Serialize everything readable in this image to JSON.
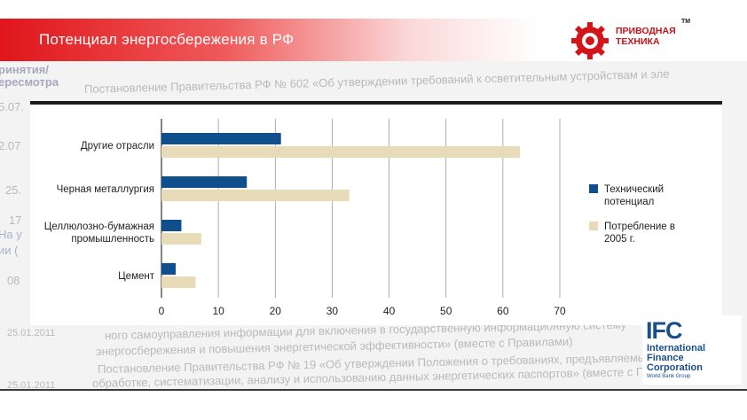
{
  "header": {
    "title": "Потенциал энергосбережения в РФ"
  },
  "logo": {
    "line1": "ПРИВОДНАЯ",
    "line2": "ТЕХНИКА",
    "tm": "TM"
  },
  "ifc_logo": {
    "mark": "IFC",
    "line1": "International",
    "line2": "Finance",
    "line3": "Corporation",
    "sub": "World Bank Group"
  },
  "background_text": {
    "left_fragments": [
      "ринятия/",
      "ересмотра",
      "5.07.",
      "2.07",
      "25.",
      "17",
      "На у",
      "ии (",
      "08",
      "25.01.2011",
      "25.01.2011"
    ],
    "lines": [
      "Постановление Правительства РФ № 602 «Об утверждении требований к осветительным устройствам и эле",
      "ного самоуправления информации для включения в государственную информационную систему",
      "энергосбережения и повышения энергетической эффективности» (вместе с Правилами)",
      "Постановление Правительства РФ № 19 «Об утверждении Положения о требованиях, предъявляемых к",
      "обработке, систематизации, анализу и использованию данных энергетических паспортов» (вместе с По"
    ]
  },
  "chart_data": {
    "type": "bar",
    "orientation": "horizontal",
    "categories": [
      "Другие отрасли",
      "Черная металлургия",
      "Целлюлозно-бумажная промышленность",
      "Цемент"
    ],
    "category_labels": [
      [
        "Другие отрасли"
      ],
      [
        "Черная металлургия"
      ],
      [
        "Целлюлозно-бумажная",
        "промышленность"
      ],
      [
        "Цемент"
      ]
    ],
    "series": [
      {
        "name": "Технический потенциал",
        "legend_lines": [
          "Технический",
          "потенциал"
        ],
        "color": "#0f4f8c",
        "values": [
          21,
          15,
          3.5,
          2.5
        ]
      },
      {
        "name": "Потребление в 2005 г.",
        "legend_lines": [
          "Потребление в",
          "2005 г."
        ],
        "color": "#e8dcb8",
        "values": [
          63,
          33,
          7,
          6
        ]
      }
    ],
    "xlim": [
      0,
      70
    ],
    "xticks": [
      "0",
      "10",
      "20",
      "30",
      "40",
      "50",
      "60",
      "70"
    ],
    "grid": true,
    "legend_position": "right",
    "title": "",
    "xlabel": "",
    "ylabel": ""
  }
}
